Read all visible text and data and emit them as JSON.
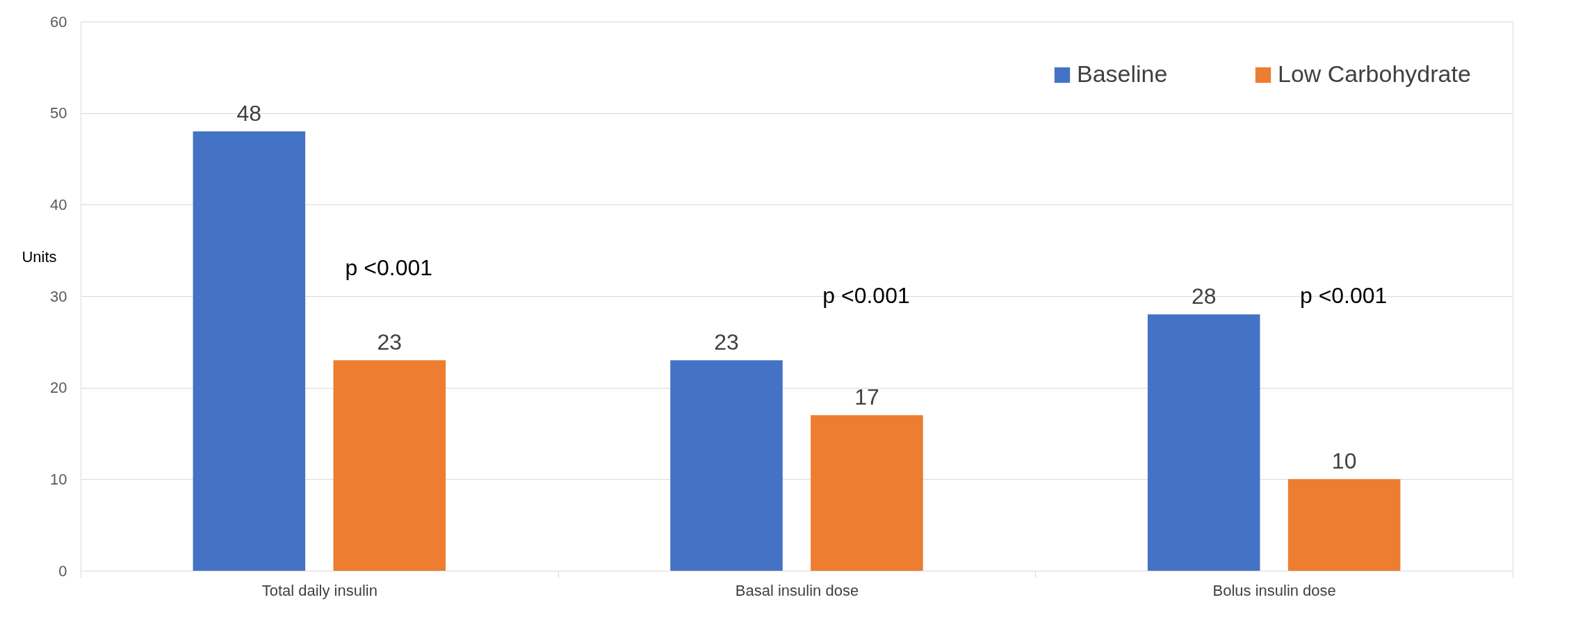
{
  "chart_data": {
    "type": "bar",
    "ylabel": "Units",
    "categories": [
      "Total daily insulin",
      "Basal insulin dose",
      "Bolus insulin dose"
    ],
    "series": [
      {
        "name": "Baseline",
        "color": "#4472c4",
        "values": [
          48,
          23,
          28
        ]
      },
      {
        "name": "Low Carbohydrate",
        "color": "#ed7d31",
        "values": [
          23,
          17,
          10
        ]
      }
    ],
    "ylim": [
      0,
      60
    ],
    "yticks": [
      0,
      10,
      20,
      30,
      40,
      50,
      60
    ],
    "grid": "y",
    "legend": "top right",
    "data_labels": true,
    "annotations": [
      "p <0.001",
      "p <0.001",
      "p <0.001"
    ]
  }
}
